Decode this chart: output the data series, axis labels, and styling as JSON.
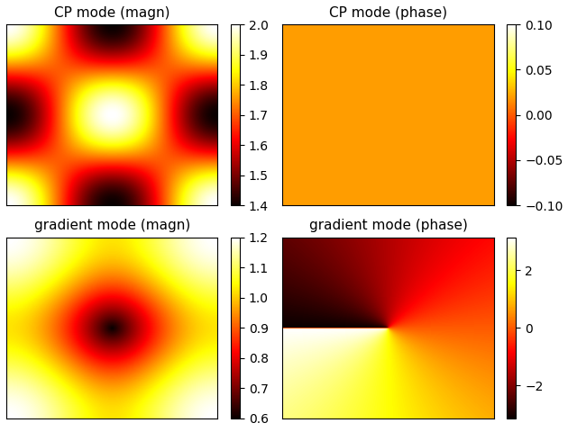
{
  "title_cp_magn": "CP mode (magn)",
  "title_cp_phase": "CP mode (phase)",
  "title_grad_magn": "gradient mode (magn)",
  "title_grad_phase": "gradient mode (phase)",
  "cp_magn_vmin": 1.4,
  "cp_magn_vmax": 2.0,
  "cp_phase_vmin": -0.1,
  "cp_phase_vmax": 0.1,
  "cp_phase_val": 0.02,
  "grad_magn_vmin": 0.6,
  "grad_magn_vmax": 1.2,
  "grad_phase_vmin": -3.14159,
  "grad_phase_vmax": 3.14159,
  "grad_phase_ticks": [
    -2,
    0,
    2
  ],
  "cmap_hot": "hot",
  "n": 300,
  "figsize": [
    6.4,
    4.8
  ],
  "dpi": 100
}
